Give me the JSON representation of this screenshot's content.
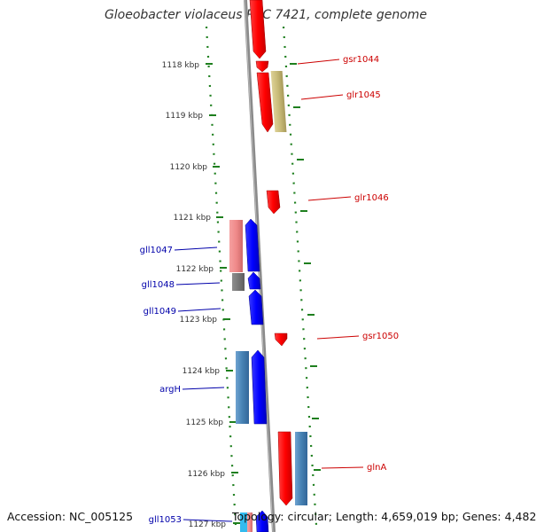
{
  "title": "Gloeobacter violaceus PCC 7421, complete genome",
  "colors": {
    "background": "#ffffff",
    "backbone": "#8a8a8a",
    "tick_dots": "#1e7f1e",
    "forward_cds": "#ff0000",
    "forward_label": "#cc0000",
    "reverse_cds": "#0000ff",
    "reverse_label": "#0000aa",
    "forward_feature_tan": "#c8bb78",
    "reverse_feature_pink": "#f08a8a",
    "reverse_feature_gray": "#777777",
    "steel_blue": "#4682b4"
  },
  "ruler": {
    "unit": "kbp",
    "ticks": [
      "1118 kbp",
      "1119 kbp",
      "1120 kbp",
      "1121 kbp",
      "1122 kbp",
      "1123 kbp",
      "1124 kbp",
      "1125 kbp",
      "1126 kbp",
      "1127 kbp"
    ]
  },
  "genes": {
    "forward": [
      "gsr1044",
      "glr1045",
      "glr1046",
      "gsr1050",
      "glnA"
    ],
    "reverse": [
      "gll1047",
      "gll1048",
      "gll1049",
      "argH",
      "gll1053"
    ]
  },
  "footer": {
    "accession_label": "Accession:",
    "accession": "NC_005125",
    "topology_label": "Topology:",
    "topology": "circular",
    "length_label": "Length:",
    "length": "4,659,019 bp",
    "genes_label": "Genes:",
    "genes_count": "4,482"
  }
}
